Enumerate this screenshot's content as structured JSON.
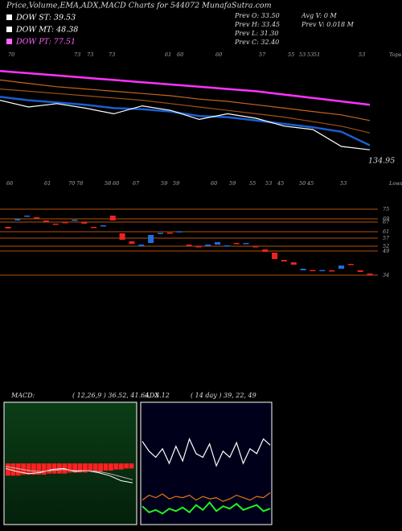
{
  "header": {
    "title": "Price,Volume,EMA,ADX,MACD Charts for 544072 MunafaSutra.com",
    "dow": [
      {
        "label": "DOW ST: 39.53",
        "color": "#ffffff"
      },
      {
        "label": "DOW MT: 48.38",
        "color": "#ffffff"
      },
      {
        "label": "DOW PT: 77.51",
        "color": "#ff66ff"
      }
    ],
    "prev": [
      "Prev  O: 33.50",
      "Prev  H: 33.45",
      "Prev  L: 31.30",
      "Prev  C: 32.40"
    ],
    "volume": [
      "Avg V: 0  M",
      "Prev  V: 0.018 M"
    ]
  },
  "price_panel": {
    "top_labels": [
      "70",
      "73",
      "73",
      "73",
      "61",
      "60",
      "60",
      "57",
      "55",
      "53",
      "53",
      "51",
      "53"
    ],
    "tops_caption": "Tops",
    "low_value": "134.95",
    "ylim": [
      0,
      100
    ],
    "series": [
      {
        "color": "#ff33ff",
        "values": [
          87,
          85,
          83,
          81,
          79,
          77,
          75,
          73,
          71,
          69,
          66,
          63,
          60,
          57
        ]
      },
      {
        "color": "#c86420",
        "values": [
          79,
          76,
          73,
          71,
          69,
          67,
          65,
          62,
          60,
          57,
          54,
          51,
          48,
          43
        ]
      },
      {
        "color": "#a0501a",
        "values": [
          71,
          69,
          67,
          65,
          63,
          61,
          58,
          55,
          52,
          49,
          46,
          42,
          38,
          32
        ]
      },
      {
        "color": "#1a5fd0",
        "values": [
          64,
          61,
          59,
          57,
          54,
          53,
          51,
          47,
          46,
          43,
          40,
          37,
          33,
          21
        ]
      },
      {
        "color": "#ffffff",
        "values": [
          61,
          55,
          58,
          54,
          49,
          56,
          52,
          44,
          49,
          45,
          38,
          35,
          20,
          17
        ]
      }
    ]
  },
  "candle_panel": {
    "bottom_labels": [
      "66",
      "61",
      "70",
      "78",
      "58",
      "60",
      "67",
      "59",
      "59",
      "60",
      "59",
      "55",
      "53",
      "45",
      "50",
      "45",
      "53"
    ],
    "lows_caption": "Lows",
    "ylim": [
      31,
      79
    ],
    "levels": [
      75,
      69,
      67,
      61,
      57,
      52,
      49,
      34
    ],
    "candles": [
      {
        "o": 64,
        "c": 63
      },
      {
        "o": 68,
        "c": 69
      },
      {
        "o": 70.5,
        "c": 71
      },
      {
        "o": 70,
        "c": 69.5
      },
      {
        "o": 68,
        "c": 67.5
      },
      {
        "o": 66,
        "c": 65.5
      },
      {
        "o": 67,
        "c": 66.5
      },
      {
        "o": 68,
        "c": 68.5
      },
      {
        "o": 67,
        "c": 66
      },
      {
        "o": 64,
        "c": 63.5
      },
      {
        "o": 64.5,
        "c": 65
      },
      {
        "o": 71,
        "c": 68
      },
      {
        "o": 60,
        "c": 56
      },
      {
        "o": 55,
        "c": 53.5
      },
      {
        "o": 52,
        "c": 53
      },
      {
        "o": 54,
        "c": 59
      },
      {
        "o": 60,
        "c": 60.3
      },
      {
        "o": 60.5,
        "c": 60
      },
      {
        "o": 61,
        "c": 61.3
      },
      {
        "o": 53,
        "c": 52.5
      },
      {
        "o": 52,
        "c": 51.5
      },
      {
        "o": 52,
        "c": 53
      },
      {
        "o": 53,
        "c": 54.5
      },
      {
        "o": 52,
        "c": 52.5
      },
      {
        "o": 54,
        "c": 53.5
      },
      {
        "o": 53.5,
        "c": 54
      },
      {
        "o": 52,
        "c": 51.5
      },
      {
        "o": 50,
        "c": 48.5
      },
      {
        "o": 48,
        "c": 44
      },
      {
        "o": 43.5,
        "c": 42.5
      },
      {
        "o": 42,
        "c": 40.5
      },
      {
        "o": 37,
        "c": 38
      },
      {
        "o": 37.2,
        "c": 37
      },
      {
        "o": 37,
        "c": 37.2
      },
      {
        "o": 37,
        "c": 36.8
      },
      {
        "o": 38,
        "c": 40
      },
      {
        "o": 41,
        "c": 40.5
      },
      {
        "o": 37,
        "c": 36
      },
      {
        "o": 35,
        "c": 34
      }
    ]
  },
  "macd_panel": {
    "title": "MACD:",
    "params": "( 12,26,9 ) 36.52, 41.64, -5.12",
    "ylim": [
      -60,
      60
    ],
    "histogram": {
      "color": "#ff2020",
      "values": [
        -12,
        -12,
        -12,
        -11,
        -11,
        -11,
        -11,
        -11,
        -10,
        -10,
        -10,
        -10,
        -9,
        -9,
        -9,
        -9,
        -8,
        -8,
        -8,
        -7,
        -7,
        -6,
        -6,
        -5,
        -5
      ]
    },
    "series": [
      {
        "color": "#ffffff",
        "values": [
          -5,
          -8,
          -10,
          -9,
          -6,
          -5,
          -8,
          -7,
          -9,
          -12,
          -17,
          -19
        ]
      },
      {
        "color": "#bbbbbb",
        "values": [
          -3,
          -5,
          -7,
          -8,
          -7,
          -6,
          -7,
          -7,
          -8,
          -10,
          -13,
          -16
        ]
      }
    ]
  },
  "adx_panel": {
    "title": "ADX",
    "params": "( 14 day ) 39, 22, 49",
    "ylim": [
      0,
      100
    ],
    "series": [
      {
        "color": "#ffffff",
        "values": [
          68,
          60,
          55,
          62,
          50,
          64,
          52,
          70,
          58,
          55,
          66,
          48,
          60,
          55,
          67,
          50,
          62,
          58,
          70,
          65
        ]
      },
      {
        "color": "#e07818",
        "values": [
          20,
          24,
          22,
          25,
          21,
          23,
          22,
          24,
          20,
          23,
          21,
          22,
          19,
          21,
          24,
          22,
          20,
          23,
          22,
          26
        ]
      },
      {
        "color": "#22ee22",
        "values": [
          15,
          10,
          12,
          9,
          13,
          11,
          14,
          10,
          16,
          12,
          18,
          11,
          15,
          13,
          17,
          12,
          14,
          16,
          11,
          13
        ]
      }
    ]
  }
}
